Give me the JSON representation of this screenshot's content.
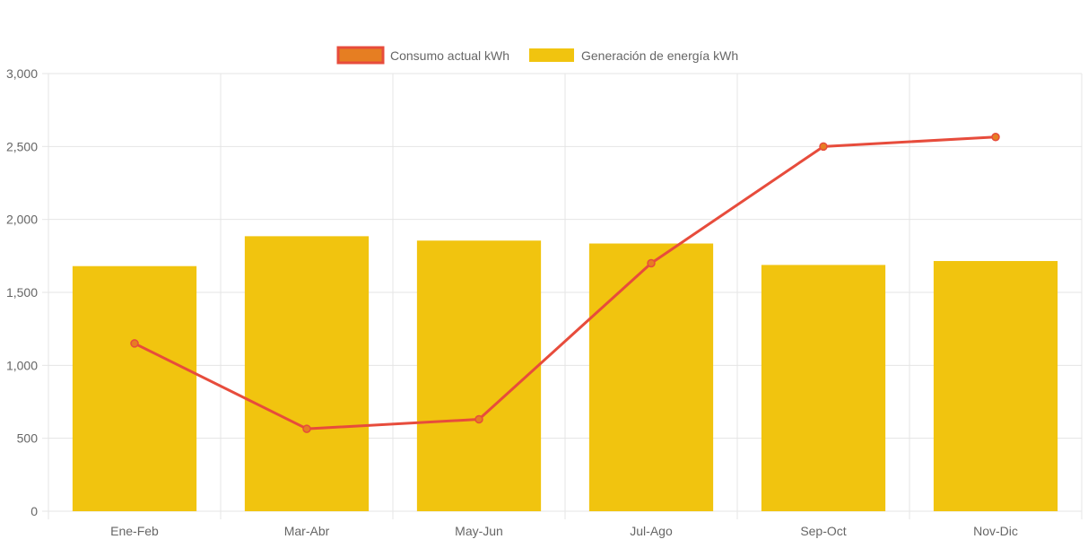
{
  "chart_data": {
    "type": "bar",
    "categories": [
      "Ene-Feb",
      "Mar-Abr",
      "May-Jun",
      "Jul-Ago",
      "Sep-Oct",
      "Nov-Dic"
    ],
    "series": [
      {
        "name": "Consumo actual kWh",
        "type": "line",
        "values": [
          1150,
          565,
          630,
          1700,
          2500,
          2565
        ],
        "color": "#e74c3c",
        "marker_color": "#e67e22"
      },
      {
        "name": "Generación de energía kWh",
        "type": "bar",
        "values": [
          1680,
          1885,
          1855,
          1835,
          1688,
          1715
        ],
        "color": "#f1c40f"
      }
    ],
    "y_ticks": [
      "0",
      "500",
      "1,000",
      "1,500",
      "2,000",
      "2,500",
      "3,000"
    ],
    "ylim": [
      0,
      3000
    ],
    "grid": true,
    "legend_position": "top"
  },
  "colors": {
    "grid": "#e5e5e5",
    "tick_text": "#666666"
  }
}
